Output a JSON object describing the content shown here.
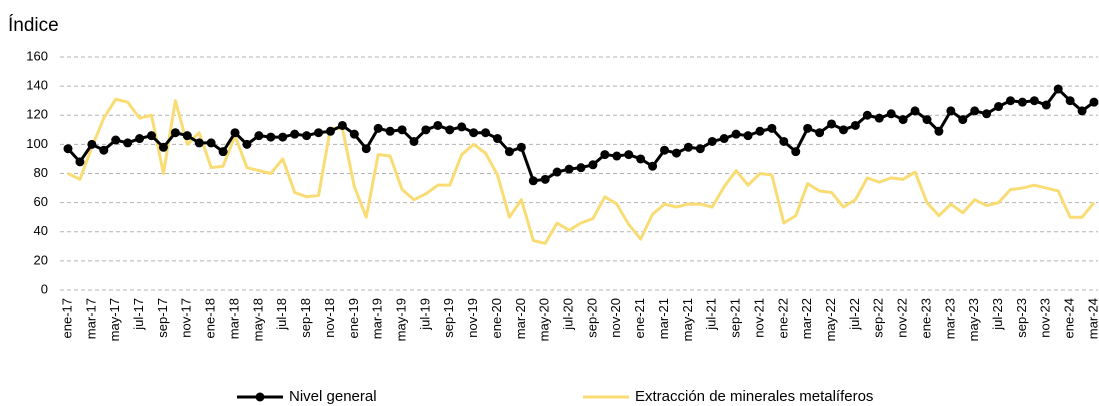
{
  "chart_data": {
    "type": "line",
    "y_label": "Índice",
    "categories": [
      "ene-17",
      null,
      "mar-17",
      null,
      "may-17",
      null,
      "jul-17",
      null,
      "sep-17",
      null,
      "nov-17",
      null,
      "ene-18",
      null,
      "mar-18",
      null,
      "may-18",
      null,
      "jul-18",
      null,
      "sep-18",
      null,
      "nov-18",
      null,
      "ene-19",
      null,
      "mar-19",
      null,
      "may-19",
      null,
      "jul-19",
      null,
      "sep-19",
      null,
      "nov-19",
      null,
      "ene-20",
      null,
      "mar-20",
      null,
      "may-20",
      null,
      "jul-20",
      null,
      "sep-20",
      null,
      "nov-20",
      null,
      "ene-21",
      null,
      "mar-21",
      null,
      "may-21",
      null,
      "jul-21",
      null,
      "sep-21",
      null,
      "nov-21",
      null,
      "ene-22",
      null,
      "mar-22",
      null,
      "may-22",
      null,
      "jul-22",
      null,
      "sep-22",
      null,
      "nov-22",
      null,
      "ene-23",
      null,
      "mar-23",
      null,
      "may-23",
      null,
      "jul-23",
      null,
      "sep-23",
      null,
      "nov-23",
      null,
      "ene-24",
      null,
      "mar-24"
    ],
    "series": [
      {
        "name": "Nivel general",
        "color": "#000000",
        "markers": true,
        "values": [
          97,
          88,
          100,
          96,
          103,
          101,
          104,
          106,
          98,
          108,
          106,
          101,
          101,
          95,
          108,
          100,
          106,
          105,
          105,
          107,
          106,
          108,
          109,
          113,
          107,
          97,
          111,
          109,
          110,
          102,
          110,
          113,
          110,
          112,
          108,
          108,
          104,
          95,
          98,
          75,
          76,
          81,
          83,
          84,
          86,
          93,
          92,
          93,
          90,
          85,
          96,
          94,
          98,
          97,
          102,
          104,
          107,
          106,
          109,
          111,
          102,
          95,
          111,
          108,
          114,
          110,
          113,
          120,
          118,
          121,
          117,
          123,
          117,
          109,
          123,
          117,
          123,
          121,
          126,
          130,
          129,
          130,
          127,
          138,
          130,
          123,
          129
        ]
      },
      {
        "name": "Extracción de minerales metalíferos",
        "color": "#f9dc74",
        "markers": false,
        "values": [
          80,
          76,
          98,
          118,
          131,
          129,
          118,
          120,
          80,
          130,
          100,
          108,
          84,
          85,
          106,
          84,
          82,
          80,
          90,
          67,
          64,
          65,
          111,
          111,
          71,
          50,
          93,
          92,
          69,
          62,
          66,
          72,
          72,
          93,
          100,
          94,
          79,
          50,
          62,
          34,
          32,
          46,
          41,
          46,
          49,
          64,
          59,
          45,
          35,
          52,
          59,
          57,
          59,
          59,
          57,
          71,
          82,
          72,
          80,
          79,
          46,
          51,
          73,
          68,
          67,
          57,
          62,
          77,
          74,
          77,
          76,
          81,
          60,
          51,
          59,
          53,
          62,
          58,
          60,
          69,
          70,
          72,
          70,
          68,
          50,
          50,
          60
        ]
      }
    ],
    "ylim": [
      0,
      160
    ],
    "yticks": [
      0,
      20,
      40,
      60,
      80,
      100,
      120,
      140,
      160
    ],
    "grid": true,
    "legend": "bottom"
  }
}
